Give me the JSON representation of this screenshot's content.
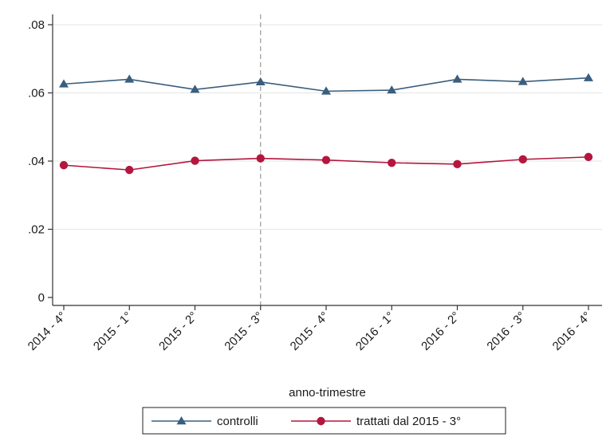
{
  "chart_data": {
    "type": "line",
    "categories": [
      "2014 - 4°",
      "2015 - 1°",
      "2015 - 2°",
      "2015 - 3°",
      "2015 - 4°",
      "2016 - 1°",
      "2016 - 2°",
      "2016 - 3°",
      "2016 - 4°"
    ],
    "series": [
      {
        "name": "controlli",
        "values": [
          0.0626,
          0.064,
          0.061,
          0.0632,
          0.0605,
          0.0608,
          0.064,
          0.0633,
          0.0644
        ],
        "color": "#3a5e7e",
        "marker": "triangle"
      },
      {
        "name": "trattati dal 2015 - 3°",
        "values": [
          0.0388,
          0.0374,
          0.0401,
          0.0408,
          0.0403,
          0.0395,
          0.0391,
          0.0405,
          0.0412
        ],
        "color": "#b5163d",
        "marker": "circle"
      }
    ],
    "xlabel": "anno-trimestre",
    "ylabel": "",
    "ylim": [
      0,
      0.08
    ],
    "yticks": [
      {
        "value": 0,
        "label": "0"
      },
      {
        "value": 0.02,
        "label": ".02"
      },
      {
        "value": 0.04,
        "label": ".04"
      },
      {
        "value": 0.06,
        "label": ".06"
      },
      {
        "value": 0.08,
        "label": ".08"
      }
    ],
    "vline_category_index": 3,
    "grid": true,
    "legend_position": "bottom"
  }
}
